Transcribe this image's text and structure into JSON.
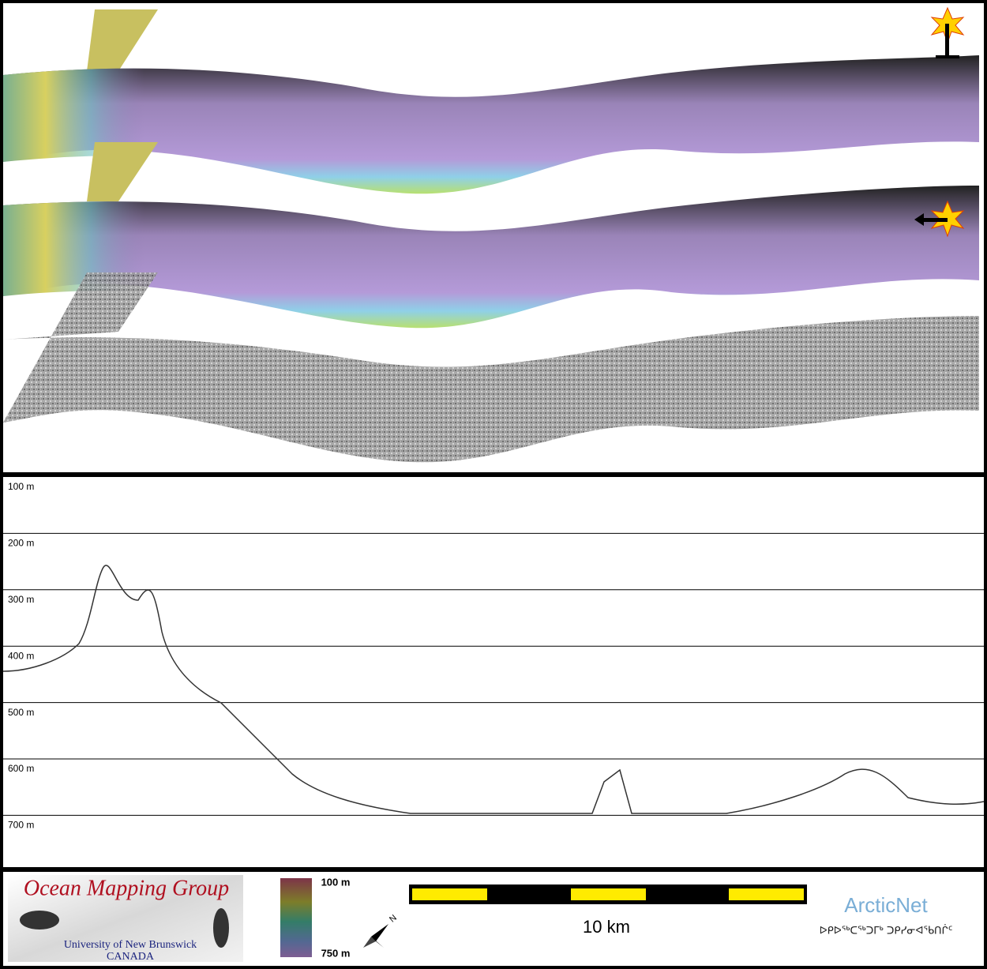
{
  "profile": {
    "depth_labels": [
      "100 m",
      "200 m",
      "300 m",
      "400 m",
      "500 m",
      "600 m",
      "700 m"
    ]
  },
  "footer": {
    "logo_title": "Ocean Mapping Group",
    "logo_university": "University of New Brunswick",
    "logo_country": "CANADA",
    "colorbar_top": "100 m",
    "colorbar_bottom": "750 m",
    "north": "N",
    "scale_label": "10 km",
    "partner": "ArcticNet",
    "partner_syllabics": "ᐅᑭᐅᖅᑕᖅᑐᒥᒃ ᑐᑭᓯᓂᐊᖃᑎᒌᑦ"
  }
}
